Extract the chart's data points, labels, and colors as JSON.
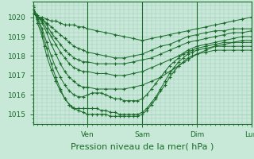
{
  "bg_color": "#c8e8d8",
  "grid_color": "#a0c8b8",
  "line_color": "#1a6b2a",
  "marker": "+",
  "xlabel": "Pression niveau de la mer( hPa )",
  "xlabel_fontsize": 8,
  "yticks": [
    1015,
    1016,
    1017,
    1018,
    1019,
    1020
  ],
  "ylim": [
    1014.5,
    1020.8
  ],
  "xlim": [
    0,
    96
  ],
  "xtick_positions": [
    24,
    48,
    72,
    96
  ],
  "xtick_labels": [
    "Ven",
    "Sam",
    "Dim",
    "Lun"
  ],
  "series": [
    {
      "x": [
        0,
        2,
        4,
        6,
        8,
        10,
        12,
        14,
        16,
        18,
        20,
        22,
        24,
        28,
        32,
        36,
        40,
        44,
        48,
        52,
        56,
        60,
        64,
        68,
        72,
        76,
        80,
        84,
        88,
        92,
        96
      ],
      "y": [
        1020.2,
        1020.0,
        1020.0,
        1019.9,
        1019.8,
        1019.8,
        1019.7,
        1019.6,
        1019.6,
        1019.6,
        1019.5,
        1019.5,
        1019.4,
        1019.3,
        1019.2,
        1019.1,
        1019.0,
        1018.9,
        1018.8,
        1018.9,
        1019.0,
        1019.1,
        1019.2,
        1019.3,
        1019.4,
        1019.5,
        1019.6,
        1019.7,
        1019.8,
        1019.9,
        1020.0
      ]
    },
    {
      "x": [
        0,
        2,
        4,
        6,
        8,
        10,
        12,
        14,
        16,
        18,
        20,
        22,
        24,
        28,
        32,
        36,
        40,
        44,
        48,
        52,
        56,
        60,
        64,
        68,
        72,
        76,
        80,
        84,
        88,
        92,
        96
      ],
      "y": [
        1020.2,
        1020.0,
        1019.9,
        1019.7,
        1019.5,
        1019.3,
        1019.1,
        1018.9,
        1018.7,
        1018.5,
        1018.4,
        1018.3,
        1018.2,
        1018.1,
        1018.0,
        1017.9,
        1017.9,
        1018.0,
        1018.1,
        1018.3,
        1018.5,
        1018.6,
        1018.8,
        1019.0,
        1019.1,
        1019.2,
        1019.3,
        1019.3,
        1019.4,
        1019.4,
        1019.4
      ]
    },
    {
      "x": [
        0,
        2,
        4,
        6,
        8,
        10,
        12,
        14,
        16,
        18,
        20,
        22,
        24,
        28,
        32,
        36,
        40,
        44,
        48,
        52,
        56,
        60,
        64,
        68,
        72,
        76,
        80,
        84,
        88,
        92,
        96
      ],
      "y": [
        1020.3,
        1020.0,
        1019.9,
        1019.6,
        1019.2,
        1018.9,
        1018.6,
        1018.3,
        1018.1,
        1017.9,
        1017.8,
        1017.7,
        1017.7,
        1017.6,
        1017.6,
        1017.6,
        1017.6,
        1017.7,
        1017.8,
        1017.9,
        1018.1,
        1018.3,
        1018.5,
        1018.7,
        1018.8,
        1018.9,
        1019.0,
        1019.1,
        1019.2,
        1019.2,
        1019.3
      ]
    },
    {
      "x": [
        0,
        2,
        4,
        6,
        8,
        10,
        12,
        14,
        16,
        18,
        20,
        22,
        24,
        28,
        32,
        36,
        40,
        44,
        48,
        52,
        56,
        60,
        64,
        68,
        72,
        76,
        80,
        84,
        88,
        92,
        96
      ],
      "y": [
        1020.3,
        1020.0,
        1019.8,
        1019.4,
        1019.0,
        1018.6,
        1018.2,
        1017.9,
        1017.6,
        1017.4,
        1017.3,
        1017.2,
        1017.2,
        1017.1,
        1017.1,
        1017.0,
        1017.0,
        1017.1,
        1017.2,
        1017.4,
        1017.6,
        1017.8,
        1018.0,
        1018.3,
        1018.5,
        1018.6,
        1018.7,
        1018.8,
        1018.9,
        1019.0,
        1019.0
      ]
    },
    {
      "x": [
        0,
        2,
        4,
        6,
        8,
        10,
        12,
        14,
        16,
        18,
        20,
        22,
        24,
        28,
        32,
        36,
        40,
        44,
        48,
        52,
        56,
        60,
        64,
        68,
        72,
        76,
        80,
        84,
        88,
        92,
        96
      ],
      "y": [
        1020.4,
        1020.1,
        1019.7,
        1019.2,
        1018.6,
        1018.1,
        1017.6,
        1017.2,
        1016.9,
        1016.7,
        1016.5,
        1016.4,
        1016.4,
        1016.3,
        1016.3,
        1016.3,
        1016.3,
        1016.4,
        1016.5,
        1016.7,
        1016.9,
        1017.2,
        1017.5,
        1017.8,
        1018.1,
        1018.3,
        1018.5,
        1018.6,
        1018.7,
        1018.7,
        1018.7
      ]
    },
    {
      "x": [
        0,
        2,
        4,
        6,
        8,
        10,
        12,
        14,
        16,
        18,
        20,
        22,
        24,
        26,
        28,
        30,
        32,
        34,
        36,
        38,
        40,
        42,
        44,
        46,
        48,
        50,
        52,
        54,
        56,
        58,
        60,
        62,
        64,
        66,
        68,
        70,
        72,
        76,
        80,
        84,
        88,
        92,
        96
      ],
      "y": [
        1020.5,
        1020.0,
        1019.4,
        1018.7,
        1018.0,
        1017.4,
        1016.9,
        1016.5,
        1016.2,
        1016.0,
        1015.9,
        1015.9,
        1016.0,
        1016.1,
        1016.1,
        1016.1,
        1016.0,
        1015.9,
        1015.8,
        1015.8,
        1015.7,
        1015.7,
        1015.7,
        1015.7,
        1015.8,
        1016.0,
        1016.3,
        1016.6,
        1016.9,
        1017.2,
        1017.5,
        1017.7,
        1017.9,
        1018.1,
        1018.2,
        1018.3,
        1018.4,
        1018.5,
        1018.6,
        1018.7,
        1018.7,
        1018.8,
        1018.8
      ]
    },
    {
      "x": [
        0,
        2,
        4,
        6,
        8,
        10,
        12,
        14,
        16,
        18,
        20,
        22,
        24,
        26,
        28,
        30,
        32,
        34,
        36,
        38,
        40,
        42,
        44,
        46,
        48,
        50,
        52,
        54,
        56,
        58,
        60,
        62,
        64,
        66,
        68,
        70,
        72,
        76,
        80,
        84,
        88,
        92,
        96
      ],
      "y": [
        1020.5,
        1019.9,
        1019.2,
        1018.4,
        1017.6,
        1016.9,
        1016.3,
        1015.8,
        1015.5,
        1015.3,
        1015.3,
        1015.3,
        1015.3,
        1015.3,
        1015.3,
        1015.2,
        1015.2,
        1015.1,
        1015.1,
        1015.0,
        1015.0,
        1015.0,
        1015.0,
        1015.0,
        1015.1,
        1015.3,
        1015.6,
        1015.9,
        1016.3,
        1016.7,
        1017.1,
        1017.4,
        1017.7,
        1017.9,
        1018.1,
        1018.2,
        1018.3,
        1018.4,
        1018.5,
        1018.5,
        1018.5,
        1018.5,
        1018.5
      ]
    },
    {
      "x": [
        0,
        2,
        4,
        5,
        6,
        8,
        10,
        12,
        14,
        16,
        17,
        18,
        20,
        22,
        24,
        26,
        28,
        30,
        32,
        34,
        36,
        38,
        40,
        42,
        44,
        46,
        48,
        50,
        52,
        54,
        56,
        58,
        60,
        62,
        64,
        66,
        68,
        70,
        72,
        76,
        80,
        84,
        88,
        92,
        96
      ],
      "y": [
        1020.6,
        1019.7,
        1019.0,
        1018.5,
        1018.0,
        1017.3,
        1016.7,
        1016.2,
        1015.8,
        1015.5,
        1015.4,
        1015.3,
        1015.2,
        1015.1,
        1015.0,
        1015.0,
        1015.0,
        1015.0,
        1015.0,
        1014.9,
        1014.9,
        1014.9,
        1014.9,
        1014.9,
        1014.9,
        1014.9,
        1015.0,
        1015.2,
        1015.5,
        1015.8,
        1016.2,
        1016.5,
        1016.9,
        1017.2,
        1017.5,
        1017.7,
        1017.9,
        1018.0,
        1018.1,
        1018.2,
        1018.3,
        1018.3,
        1018.3,
        1018.3,
        1018.3
      ]
    }
  ]
}
